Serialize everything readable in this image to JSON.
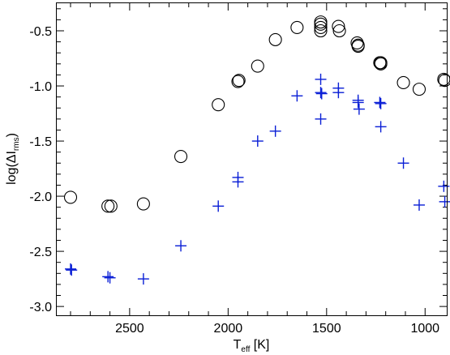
{
  "chart_data": {
    "type": "scatter",
    "xlabel": {
      "main": "T",
      "sub": "eff",
      "unit": " [K]"
    },
    "ylabel": {
      "pre": "log(ΔI",
      "sub": "rms",
      "post": ")"
    },
    "x_reversed": true,
    "xlim": [
      2870,
      890
    ],
    "ylim": [
      -3.08,
      -0.25
    ],
    "xticks": [
      2500,
      2000,
      1500,
      1000
    ],
    "xtick_labels": [
      "2500",
      "2000",
      "1500",
      "1000"
    ],
    "yticks": [
      -3.0,
      -2.5,
      -2.0,
      -1.5,
      -1.0,
      -0.5
    ],
    "ytick_labels": [
      "-3.0",
      "-2.5",
      "-2.0",
      "-1.5",
      "-1.0",
      "-0.5"
    ],
    "series": [
      {
        "marker": "circle",
        "color": "#000000",
        "points": [
          [
            2800,
            -2.01
          ],
          [
            2610,
            -2.09
          ],
          [
            2595,
            -2.09
          ],
          [
            2430,
            -2.07
          ],
          [
            2240,
            -1.64
          ],
          [
            2050,
            -1.17
          ],
          [
            1950,
            -0.96
          ],
          [
            1945,
            -0.95
          ],
          [
            1850,
            -0.82
          ],
          [
            1760,
            -0.58
          ],
          [
            1650,
            -0.47
          ],
          [
            1530,
            -0.42
          ],
          [
            1530,
            -0.44
          ],
          [
            1530,
            -0.47
          ],
          [
            1530,
            -0.5
          ],
          [
            1440,
            -0.46
          ],
          [
            1435,
            -0.5
          ],
          [
            1345,
            -0.61
          ],
          [
            1340,
            -0.63
          ],
          [
            1340,
            -0.64
          ],
          [
            1230,
            -0.79
          ],
          [
            1225,
            -0.79
          ],
          [
            1225,
            -0.8
          ],
          [
            1110,
            -0.97
          ],
          [
            1030,
            -1.03
          ],
          [
            905,
            -0.94
          ],
          [
            900,
            -0.95
          ]
        ]
      },
      {
        "marker": "plus",
        "color": "#0a1fd6",
        "points": [
          [
            2800,
            -2.66
          ],
          [
            2795,
            -2.67
          ],
          [
            2610,
            -2.73
          ],
          [
            2600,
            -2.74
          ],
          [
            2430,
            -2.75
          ],
          [
            2240,
            -2.45
          ],
          [
            2050,
            -2.09
          ],
          [
            1950,
            -1.83
          ],
          [
            1950,
            -1.87
          ],
          [
            1850,
            -1.5
          ],
          [
            1760,
            -1.41
          ],
          [
            1650,
            -1.09
          ],
          [
            1530,
            -0.94
          ],
          [
            1530,
            -1.06
          ],
          [
            1525,
            -1.07
          ],
          [
            1530,
            -1.3
          ],
          [
            1440,
            -1.02
          ],
          [
            1440,
            -1.06
          ],
          [
            1340,
            -1.13
          ],
          [
            1340,
            -1.15
          ],
          [
            1335,
            -1.21
          ],
          [
            1230,
            -1.15
          ],
          [
            1225,
            -1.16
          ],
          [
            1225,
            -1.37
          ],
          [
            1110,
            -1.7
          ],
          [
            1030,
            -2.08
          ],
          [
            905,
            -1.91
          ],
          [
            900,
            -2.05
          ]
        ]
      }
    ]
  }
}
